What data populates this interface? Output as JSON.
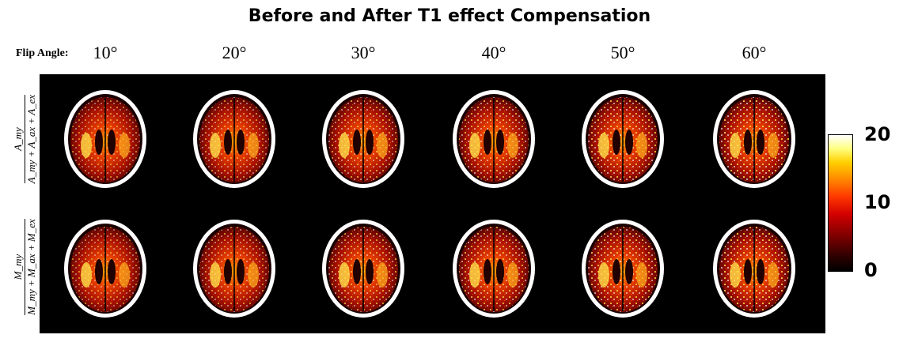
{
  "title": "Before and After T1 effect Compensation",
  "flip_angle_label": "Flip Angle:",
  "flip_angles": [
    "10°",
    "20°",
    "30°",
    "40°",
    "50°",
    "60°"
  ],
  "row_labels": [
    {
      "numerator": "A_my",
      "denominator": "A_my + A_ax + A_ex"
    },
    {
      "numerator": "M_my",
      "denominator": "M_my + M_ax + M_ex"
    }
  ],
  "colorbar": {
    "ticks": [
      "20",
      "10",
      "0"
    ],
    "colormap": "hot",
    "colors": [
      "#000000",
      "#7a0000",
      "#d40000",
      "#ff8c00",
      "#ffd000",
      "#ffffff"
    ]
  }
}
